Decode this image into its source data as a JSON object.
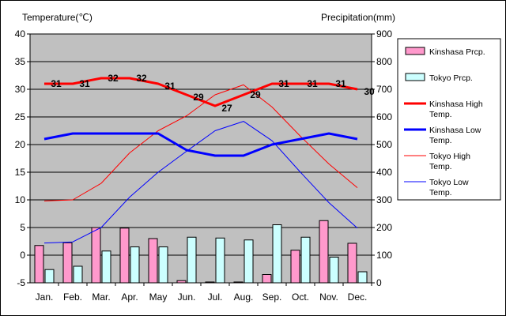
{
  "chart_data": {
    "type": "bar",
    "left_axis_title": "Temperature(℃)",
    "right_axis_title": "Precipitation(mm)",
    "categories": [
      "Jan.",
      "Feb.",
      "Mar.",
      "Apr.",
      "May",
      "Jun.",
      "Jul.",
      "Aug.",
      "Sep.",
      "Oct.",
      "Nov.",
      "Dec."
    ],
    "temp_ylim": [
      -5,
      40
    ],
    "temp_ticks": [
      "-5",
      "0",
      "5",
      "10",
      "15",
      "20",
      "25",
      "30",
      "35",
      "40"
    ],
    "prcp_ylim": [
      0,
      900
    ],
    "prcp_ticks": [
      "0",
      "100",
      "200",
      "300",
      "400",
      "500",
      "600",
      "700",
      "800",
      "900"
    ],
    "grid": true,
    "plot_background": "#c0c0c0",
    "bar_series": [
      {
        "name": "Kinshasa Prcp.",
        "color": "#ff99cc",
        "values": [
          135,
          145,
          200,
          198,
          160,
          8,
          3,
          3,
          30,
          118,
          225,
          143
        ]
      },
      {
        "name": "Tokyo Prcp.",
        "color": "#ccffff",
        "values": [
          48,
          60,
          115,
          130,
          130,
          165,
          162,
          155,
          210,
          165,
          93,
          40
        ]
      }
    ],
    "line_series": [
      {
        "name": "Kinshasa High Temp.",
        "color": "#ff0000",
        "width": 3,
        "values": [
          31,
          31,
          32,
          32,
          31,
          29,
          27,
          29,
          31,
          31,
          31,
          30
        ],
        "labels": [
          "31",
          "31",
          "32",
          "32",
          "31",
          "29",
          "27",
          "29",
          "31",
          "31",
          "31",
          "30"
        ]
      },
      {
        "name": "Kinshasa Low Temp.",
        "color": "#0000ff",
        "width": 3,
        "values": [
          21,
          22,
          22,
          22,
          22,
          19,
          18,
          18,
          20,
          21,
          22,
          21
        ]
      },
      {
        "name": "Tokyo High Temp.",
        "color": "#ff0000",
        "width": 1,
        "values": [
          9.8,
          10,
          13,
          18.5,
          22.5,
          25.2,
          29,
          30.8,
          26.8,
          21.5,
          16.5,
          12.2
        ]
      },
      {
        "name": "Tokyo Low Temp.",
        "color": "#0000ff",
        "width": 1,
        "values": [
          2.2,
          2.4,
          5,
          10.5,
          15,
          18.8,
          22.5,
          24.2,
          20.7,
          15,
          9.5,
          4.9
        ]
      }
    ]
  }
}
